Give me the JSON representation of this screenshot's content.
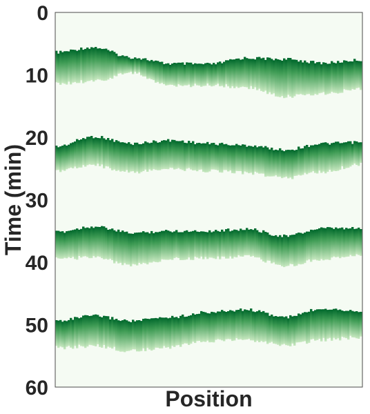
{
  "chart_data": {
    "type": "heatmap",
    "title": "",
    "xlabel": "Position",
    "ylabel": "Time (min)",
    "ylim": [
      0,
      60
    ],
    "y_inverted": true,
    "yticks": [
      0,
      10,
      20,
      30,
      40,
      50,
      60
    ],
    "xticks": [],
    "grid": false,
    "colormap": "Greens",
    "background_color": "#f5fbf3",
    "band_colors": {
      "leading": "#00682c",
      "mid": "#3f9c55",
      "trailing": "#c7e8c0"
    },
    "bands": [
      {
        "name": "",
        "leading_edge_min": [
          6.4,
          5.6,
          7.2,
          8.2,
          8.3,
          7.3,
          7.5,
          8.1,
          7.6
        ],
        "trailing_edge_min": [
          11.5,
          11.0,
          9.7,
          11.8,
          11.6,
          12.0,
          13.5,
          13.0,
          12.2
        ]
      },
      {
        "name": "",
        "leading_edge_min": [
          21.5,
          19.9,
          21.0,
          20.5,
          21.0,
          21.3,
          22.0,
          21.0,
          20.8
        ],
        "trailing_edge_min": [
          25.5,
          24.5,
          25.6,
          25.0,
          25.4,
          25.7,
          26.5,
          25.5,
          24.3
        ]
      },
      {
        "name": "",
        "leading_edge_min": [
          35.2,
          34.3,
          35.3,
          35.0,
          35.0,
          34.7,
          35.8,
          34.6,
          34.6
        ],
        "trailing_edge_min": [
          39.5,
          39.2,
          40.5,
          39.5,
          39.3,
          39.1,
          40.5,
          39.5,
          38.7
        ]
      },
      {
        "name": "",
        "leading_edge_min": [
          49.4,
          48.6,
          49.4,
          48.8,
          48.0,
          47.6,
          48.8,
          47.4,
          47.8
        ],
        "trailing_edge_min": [
          53.7,
          53.4,
          54.2,
          53.6,
          52.6,
          52.4,
          53.3,
          52.4,
          52.0
        ]
      }
    ]
  }
}
